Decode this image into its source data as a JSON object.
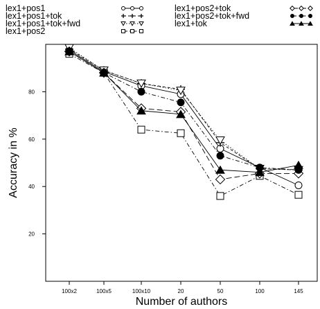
{
  "chart_data": {
    "type": "line",
    "title": "",
    "xlabel": "Number of authors",
    "ylabel": "Accuracy in %",
    "categories": [
      "100x2",
      "100x5",
      "100x10",
      "20",
      "50",
      "100",
      "145"
    ],
    "y_ticks": [
      20,
      40,
      60,
      80
    ],
    "ylim": [
      0,
      100
    ],
    "grid": false,
    "legend_position": "top",
    "series": [
      {
        "name": "lex1+pos1",
        "line": "solid",
        "marker": "circle-open",
        "values": [
          97.5,
          88.5,
          82.5,
          79.0,
          56.0,
          48.0,
          40.5
        ]
      },
      {
        "name": "lex1+pos1+tok",
        "line": "dashed",
        "marker": "plus",
        "values": [
          98.0,
          89.0,
          83.5,
          81.0,
          58.5,
          47.5,
          47.0
        ]
      },
      {
        "name": "lex1+pos1+tok+fwd",
        "line": "dotted",
        "marker": "triangle-down-open",
        "values": [
          98.5,
          89.0,
          83.5,
          80.5,
          59.5,
          47.5,
          47.0
        ]
      },
      {
        "name": "lex1+pos2",
        "line": "dashdot",
        "marker": "square-open",
        "values": [
          96.0,
          88.0,
          64.0,
          62.5,
          36.0,
          44.5,
          36.5
        ]
      },
      {
        "name": "lex1+pos2+tok",
        "line": "longdash",
        "marker": "diamond-open",
        "values": [
          97.0,
          88.0,
          73.0,
          71.5,
          43.0,
          45.5,
          45.5
        ]
      },
      {
        "name": "lex1+pos2+tok+fwd",
        "line": "dashdot",
        "marker": "circle-filled",
        "values": [
          97.0,
          88.0,
          80.0,
          75.5,
          53.0,
          48.0,
          47.0
        ]
      },
      {
        "name": "lex1+tok",
        "line": "solid",
        "marker": "triangle-up-filled",
        "values": [
          97.0,
          88.0,
          72.0,
          70.5,
          47.0,
          46.0,
          49.0
        ]
      }
    ]
  }
}
